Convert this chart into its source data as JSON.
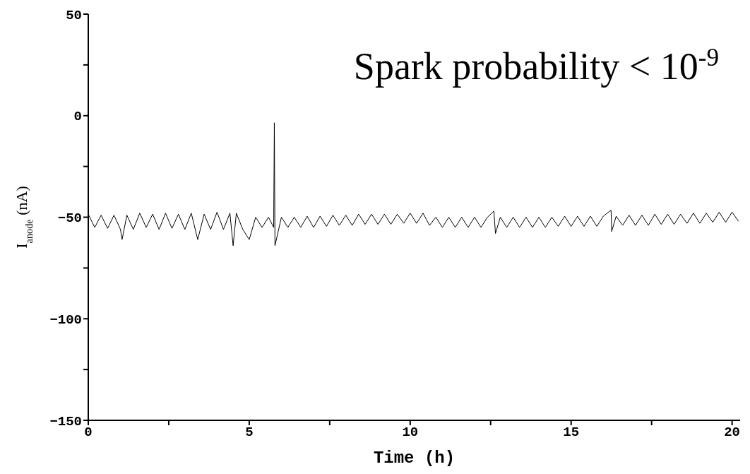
{
  "chart_data": {
    "type": "line",
    "xlabel": "Time (h)",
    "ylabel": "I$_{anode}$  (nA)",
    "annotations": [
      "Spark probability < 10$^{-9}$"
    ],
    "xlim": [
      0,
      20.25
    ],
    "xticks": [
      0,
      {
        "value": 2.5,
        "label": null
      },
      5,
      {
        "value": 7.5,
        "label": null
      },
      10,
      {
        "value": 12.5,
        "label": null
      },
      15,
      {
        "value": 17.5,
        "label": null
      },
      20
    ],
    "ylim": [
      -150,
      50
    ],
    "yticks": [
      -150,
      {
        "value": -125,
        "label": null
      },
      -100,
      {
        "value": -75,
        "label": null
      },
      -50,
      {
        "value": -25,
        "label": null
      },
      0,
      {
        "value": 25,
        "label": null
      },
      50
    ],
    "grid": false,
    "marker": "none",
    "line_style": "solid",
    "series": [
      {
        "color": "#000000",
        "x": [
          0,
          0.2,
          0.4,
          0.6,
          0.8,
          1.0,
          1.05,
          1.2,
          1.4,
          1.6,
          1.8,
          2.0,
          2.2,
          2.4,
          2.6,
          2.8,
          3.0,
          3.2,
          3.4,
          3.6,
          3.8,
          4.0,
          4.2,
          4.4,
          4.5,
          4.6,
          4.8,
          5.0,
          5.2,
          5.4,
          5.6,
          5.76,
          5.78,
          5.8,
          6.0,
          6.2,
          6.4,
          6.6,
          6.8,
          7.0,
          7.2,
          7.4,
          7.6,
          7.8,
          8.0,
          8.2,
          8.4,
          8.6,
          8.8,
          9.0,
          9.2,
          9.4,
          9.6,
          9.8,
          10.0,
          10.2,
          10.4,
          10.6,
          10.8,
          11.0,
          11.2,
          11.4,
          11.6,
          11.8,
          12.0,
          12.2,
          12.4,
          12.6,
          12.65,
          12.8,
          13.0,
          13.2,
          13.4,
          13.6,
          13.8,
          14.0,
          14.2,
          14.4,
          14.6,
          14.8,
          15.0,
          15.2,
          15.4,
          15.6,
          15.8,
          16.0,
          16.24,
          16.26,
          16.4,
          16.6,
          16.8,
          17.0,
          17.2,
          17.4,
          17.6,
          17.8,
          18.0,
          18.2,
          18.4,
          18.6,
          18.8,
          19.0,
          19.2,
          19.4,
          19.6,
          19.8,
          20.0,
          20.2
        ],
        "values": [
          -48.5,
          -55,
          -49,
          -55.5,
          -49,
          -56,
          -61,
          -49,
          -56,
          -48,
          -55,
          -48.5,
          -56,
          -48,
          -55.5,
          -48.5,
          -56,
          -48,
          -61,
          -48.5,
          -56,
          -47.5,
          -56,
          -48,
          -64,
          -48,
          -56,
          -61,
          -50,
          -55,
          -50,
          -55,
          -3.5,
          -64,
          -50,
          -55,
          -50,
          -55,
          -49.5,
          -55,
          -49.5,
          -54.5,
          -49,
          -54,
          -49,
          -54,
          -48.5,
          -53.5,
          -48.5,
          -53.5,
          -48.5,
          -53.5,
          -48.5,
          -53,
          -48,
          -53,
          -48,
          -54,
          -50,
          -55,
          -50,
          -55,
          -50,
          -55,
          -50,
          -55,
          -50,
          -47,
          -58,
          -50,
          -55,
          -50,
          -55,
          -50,
          -55,
          -50,
          -55,
          -50,
          -54.5,
          -49.5,
          -54.5,
          -49.5,
          -54.5,
          -49.5,
          -54.5,
          -49.5,
          -46.5,
          -57,
          -49.5,
          -54,
          -49,
          -54,
          -49,
          -54,
          -48.5,
          -53.5,
          -48.5,
          -53.5,
          -48.5,
          -53,
          -48,
          -53,
          -48,
          -52.5,
          -47.5,
          -52.5,
          -47.5,
          -52
        ]
      }
    ]
  }
}
